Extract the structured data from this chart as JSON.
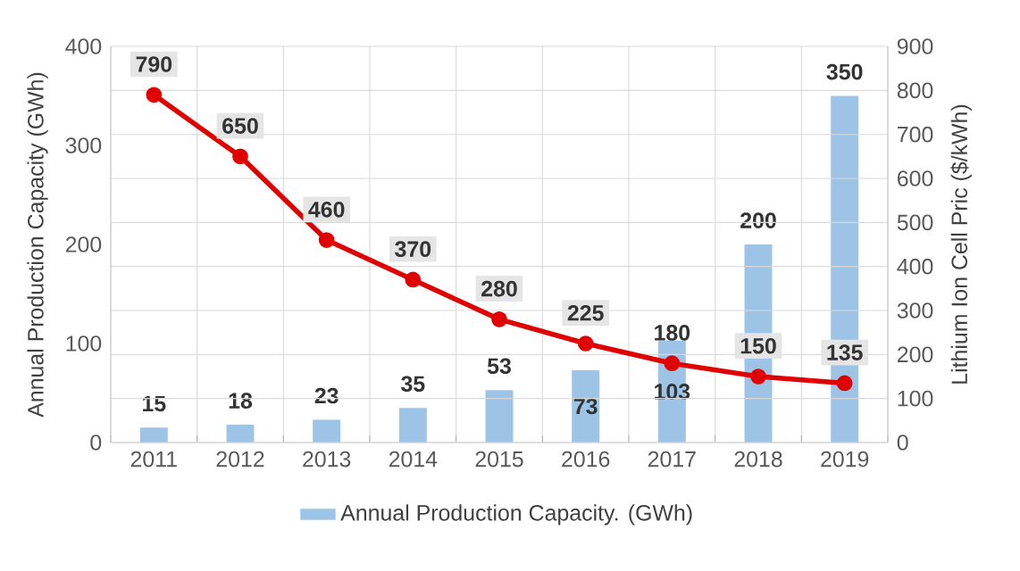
{
  "chart_data": {
    "type": "bar",
    "xlabel": null,
    "ylabel": "Annual Production Capacity (GWh)",
    "y2label": "Lithium Ion Cell Pric ($/kWh)",
    "categories": [
      "2011",
      "2012",
      "2013",
      "2014",
      "2015",
      "2016",
      "2017",
      "2018",
      "2019"
    ],
    "series": [
      {
        "name": "Annual Production Capacity. (GWh)",
        "color": "#9dc3e6",
        "values": [
          15,
          18,
          23,
          35,
          53,
          73,
          103,
          200,
          350
        ]
      },
      {
        "type": "line",
        "axis": "y2",
        "color": "#e00000",
        "marker": "circle",
        "values": [
          790,
          650,
          460,
          370,
          280,
          225,
          180,
          150,
          135
        ]
      }
    ],
    "ylim": [
      0,
      400
    ],
    "yticks": [
      0,
      100,
      200,
      300,
      400
    ],
    "y2lim": [
      0,
      900
    ],
    "y2ticks": [
      0,
      100,
      200,
      300,
      400,
      500,
      600,
      700,
      800,
      900
    ],
    "grid": true,
    "legend": "bottom",
    "data_labels": true
  }
}
